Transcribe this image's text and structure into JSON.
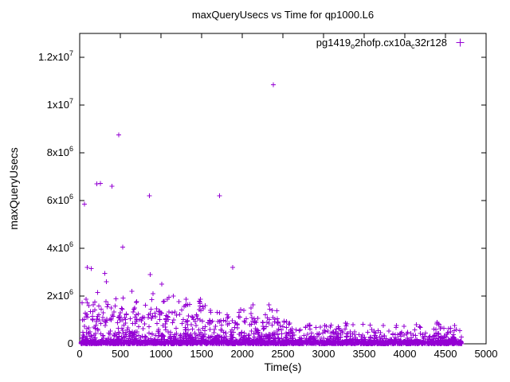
{
  "page": {
    "background": "#ffffff",
    "text_color": "#000000"
  },
  "chart_data": {
    "type": "scatter",
    "title": "maxQueryUsecs vs Time for qp1000.L6",
    "xlabel": "Time(s)",
    "ylabel": "maxQueryUsecs",
    "xlim": [
      0,
      5000
    ],
    "ylim": [
      0,
      13000000
    ],
    "grid": false,
    "legend_position": "top-right-inside",
    "xticks": [
      0,
      500,
      1000,
      1500,
      2000,
      2500,
      3000,
      3500,
      4000,
      4500,
      5000
    ],
    "yticks": [
      {
        "value": 0,
        "label": "0"
      },
      {
        "value": 2000000,
        "label": "2x10^6"
      },
      {
        "value": 4000000,
        "label": "4x10^6"
      },
      {
        "value": 6000000,
        "label": "6x10^6"
      },
      {
        "value": 8000000,
        "label": "8x10^6"
      },
      {
        "value": 10000000,
        "label": "1x10^7"
      },
      {
        "value": 12000000,
        "label": "1.2x10^7"
      }
    ],
    "series": [
      {
        "name": "pg1419_o2hofp.cx10a_c32r128",
        "label_parts": [
          {
            "text": "pg1419"
          },
          {
            "sub": "o"
          },
          {
            "text": "2hofp.cx10a"
          },
          {
            "sub": "c"
          },
          {
            "text": "32r128"
          }
        ],
        "marker": "plus",
        "color": "#9400d3",
        "seed": 1419,
        "outliers": [
          [
            60,
            5850000
          ],
          [
            95,
            3200000
          ],
          [
            140,
            3150000
          ],
          [
            210,
            6700000
          ],
          [
            255,
            6720000
          ],
          [
            310,
            2950000
          ],
          [
            330,
            2600000
          ],
          [
            395,
            6600000
          ],
          [
            480,
            8750000
          ],
          [
            530,
            4050000
          ],
          [
            220,
            2150000
          ],
          [
            640,
            2200000
          ],
          [
            860,
            6200000
          ],
          [
            870,
            2900000
          ],
          [
            900,
            2100000
          ],
          [
            1010,
            2500000
          ],
          [
            1720,
            6200000
          ],
          [
            1880,
            3200000
          ],
          [
            2380,
            10850000
          ]
        ],
        "clusters": [
          {
            "count": 1600,
            "x": [
              15,
              4700
            ],
            "y": [
              2000,
              100000
            ],
            "pow": 1
          },
          {
            "count": 700,
            "x": [
              15,
              4700
            ],
            "y": [
              5000,
              500000
            ],
            "pow": 3
          },
          {
            "count": 420,
            "x": [
              15,
              2600
            ],
            "y": [
              50000,
              1000000
            ],
            "pow": 2
          },
          {
            "count": 180,
            "x": [
              2600,
              4700
            ],
            "y": [
              50000,
              850000
            ],
            "pow": 2
          },
          {
            "count": 130,
            "x": [
              15,
              1500
            ],
            "y": [
              1000000,
              2000000
            ],
            "pow": 2
          },
          {
            "count": 45,
            "x": [
              1500,
              2450
            ],
            "y": [
              900000,
              1800000
            ],
            "pow": 2
          },
          {
            "count": 20,
            "x": [
              2500,
              4700
            ],
            "y": [
              500000,
              950000
            ],
            "pow": 1
          }
        ]
      }
    ]
  }
}
